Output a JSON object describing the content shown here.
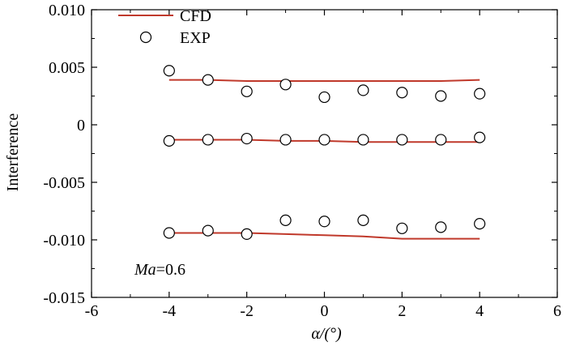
{
  "chart_data": {
    "type": "scatter",
    "title": "",
    "xlabel": "α/(°)",
    "ylabel": "Interference",
    "xlim": [
      -6,
      6
    ],
    "ylim": [
      -0.015,
      0.01
    ],
    "x_ticks": [
      -6,
      -4,
      -2,
      0,
      2,
      4,
      6
    ],
    "x_tick_labels": [
      "-6",
      "-4",
      "-2",
      "0",
      "2",
      "4",
      "6"
    ],
    "y_ticks": [
      -0.015,
      -0.01,
      -0.005,
      0,
      0.005,
      0.01
    ],
    "y_tick_labels": [
      "-0.015",
      "-0.010",
      "-0.005",
      "0",
      "0.005",
      "0.010"
    ],
    "legend_position": "top-left",
    "annotation": {
      "italic": "Ma",
      "text": "=0.6"
    },
    "colors": {
      "cfd": "#c0392b",
      "exp_edge": "#000000",
      "exp_fill": "#ffffff"
    },
    "series": [
      {
        "name": "CFD",
        "style": "line",
        "groups": [
          {
            "x": [
              -4,
              -3,
              -2,
              -1,
              0,
              1,
              2,
              3,
              4
            ],
            "y": [
              0.0039,
              0.0039,
              0.0038,
              0.0038,
              0.0038,
              0.0038,
              0.0038,
              0.0038,
              0.0039
            ]
          },
          {
            "x": [
              -4,
              -3,
              -2,
              -1,
              0,
              1,
              2,
              3,
              4
            ],
            "y": [
              -0.0013,
              -0.0013,
              -0.0013,
              -0.0014,
              -0.0014,
              -0.0015,
              -0.0015,
              -0.0015,
              -0.0015
            ]
          },
          {
            "x": [
              -4,
              -3,
              -2,
              -1,
              0,
              1,
              2,
              3,
              4
            ],
            "y": [
              -0.0094,
              -0.0094,
              -0.0094,
              -0.0095,
              -0.0096,
              -0.0097,
              -0.0099,
              -0.0099,
              -0.0099
            ]
          }
        ]
      },
      {
        "name": "EXP",
        "style": "open-circle",
        "groups": [
          {
            "x": [
              -4,
              -3,
              -2,
              -1,
              0,
              1,
              2,
              3,
              4
            ],
            "y": [
              0.0047,
              0.0039,
              0.0029,
              0.0035,
              0.0024,
              0.003,
              0.0028,
              0.0025,
              0.0027
            ]
          },
          {
            "x": [
              -4,
              -3,
              -2,
              -1,
              0,
              1,
              2,
              3,
              4
            ],
            "y": [
              -0.0014,
              -0.0013,
              -0.0012,
              -0.0013,
              -0.0013,
              -0.0013,
              -0.0013,
              -0.0013,
              -0.0011
            ]
          },
          {
            "x": [
              -4,
              -3,
              -2,
              -1,
              0,
              1,
              2,
              3,
              4
            ],
            "y": [
              -0.0094,
              -0.0092,
              -0.0095,
              -0.0083,
              -0.0084,
              -0.0083,
              -0.009,
              -0.0089,
              -0.0086
            ]
          }
        ]
      }
    ]
  }
}
